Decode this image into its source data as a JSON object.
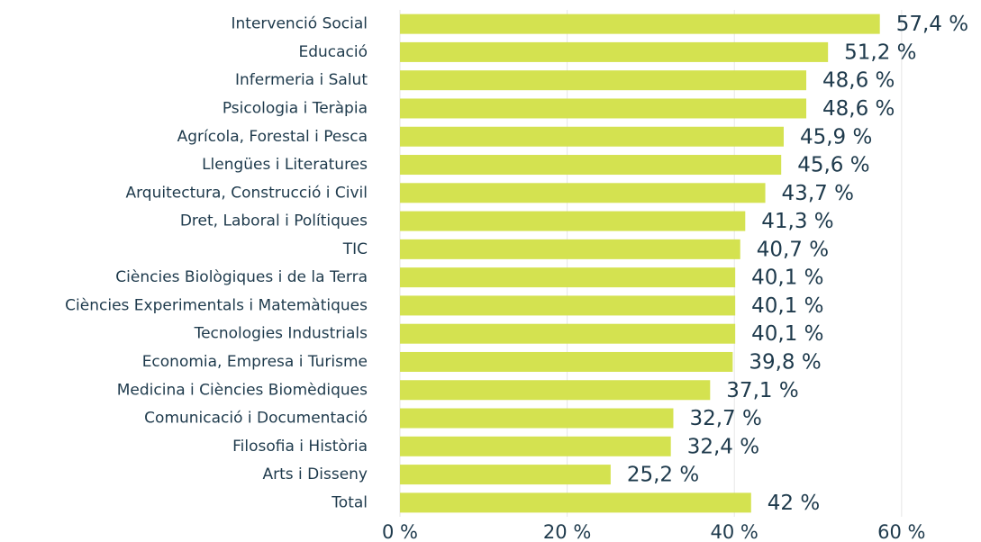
{
  "chart_data": {
    "type": "bar",
    "orientation": "horizontal",
    "categories": [
      "Intervenció Social",
      "Educació",
      "Infermeria i Salut",
      "Psicologia i Teràpia",
      "Agrícola, Forestal i Pesca",
      "Llengües i Literatures",
      "Arquitectura, Construcció i Civil",
      "Dret, Laboral i Polítiques",
      "TIC",
      "Ciències Biològiques i de la Terra",
      "Ciències Experimentals i Matemàtiques",
      "Tecnologies Industrials",
      "Economia, Empresa i Turisme",
      "Medicina i Ciències Biomèdiques",
      "Comunicació i Documentació",
      "Filosofia i Història",
      "Arts i Disseny",
      "Total"
    ],
    "values": [
      57.4,
      51.2,
      48.6,
      48.6,
      45.9,
      45.6,
      43.7,
      41.3,
      40.7,
      40.1,
      40.1,
      40.1,
      39.8,
      37.1,
      32.7,
      32.4,
      25.2,
      42
    ],
    "value_labels": [
      "57,4 %",
      "51,2 %",
      "48,6 %",
      "48,6 %",
      "45,9 %",
      "45,6 %",
      "43,7 %",
      "41,3 %",
      "40,7 %",
      "40,1 %",
      "40,1 %",
      "40,1 %",
      "39,8 %",
      "37,1 %",
      "32,7 %",
      "32,4 %",
      "25,2 %",
      "42 %"
    ],
    "color": "#d4e250",
    "xlim": [
      0,
      69.5
    ],
    "xticks": [
      {
        "value": 0,
        "label": "0 %"
      },
      {
        "value": 20,
        "label": "20 %"
      },
      {
        "value": 40,
        "label": "40 %"
      },
      {
        "value": 60,
        "label": "60 %"
      }
    ],
    "grid": true
  }
}
